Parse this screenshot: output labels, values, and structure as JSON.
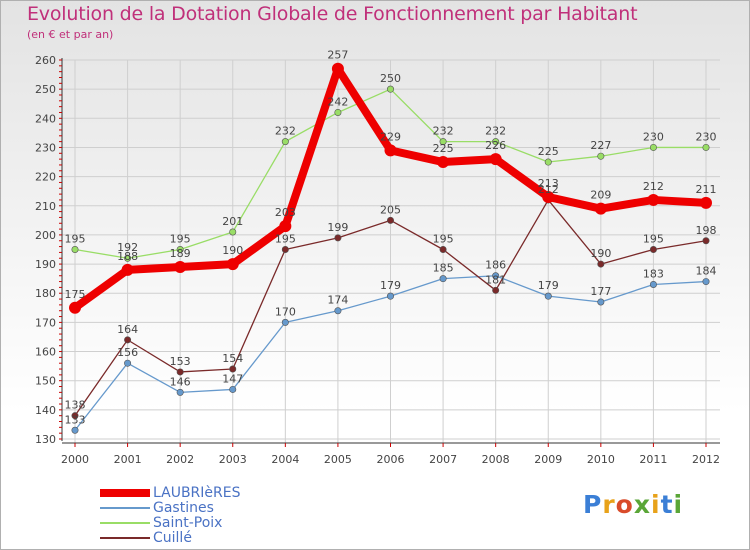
{
  "header": {
    "title": "Evolution de la Dotation Globale de Fonctionnement par Habitant",
    "subtitle": "(en € et par an)"
  },
  "logo": {
    "text": "Proxiti",
    "letter_colors": [
      "#3b7fd6",
      "#e8a21a",
      "#d94b2a",
      "#5aa637",
      "#e8a21a",
      "#3b7fd6",
      "#5aa637"
    ]
  },
  "colors": {
    "LAUBRIèRES": "#ee0000",
    "Gastines": "#6699cc",
    "Saint-Poix": "#99dd66",
    "Cuillé": "#7a2a2a",
    "axis": "#333333",
    "grid": "#cfcfcf",
    "tick_red": "#cc0000",
    "label": "#444444"
  },
  "chart_data": {
    "type": "line",
    "title": "Evolution de la Dotation Globale de Fonctionnement par Habitant",
    "subtitle": "(en € et par an)",
    "xlabel": "",
    "ylabel": "",
    "x": [
      "2000",
      "2001",
      "2002",
      "2003",
      "2004",
      "2005",
      "2006",
      "2007",
      "2008",
      "2009",
      "2010",
      "2011",
      "2012"
    ],
    "ylim": [
      130,
      260
    ],
    "yticks": [
      130,
      140,
      150,
      160,
      170,
      180,
      190,
      200,
      210,
      220,
      230,
      240,
      250,
      260
    ],
    "grid": true,
    "legend_position": "bottom-left",
    "series": [
      {
        "name": "LAUBRIèRES",
        "values": [
          175,
          188,
          189,
          190,
          203,
          257,
          229,
          225,
          226,
          213,
          209,
          212,
          211
        ]
      },
      {
        "name": "Gastines",
        "values": [
          133,
          156,
          146,
          147,
          170,
          174,
          179,
          185,
          186,
          179,
          177,
          183,
          184
        ]
      },
      {
        "name": "Saint-Poix",
        "values": [
          195,
          192,
          195,
          201,
          232,
          242,
          250,
          232,
          232,
          225,
          227,
          230,
          230
        ]
      },
      {
        "name": "Cuillé",
        "values": [
          138,
          164,
          153,
          154,
          195,
          199,
          205,
          195,
          181,
          212,
          190,
          195,
          198
        ]
      }
    ]
  }
}
